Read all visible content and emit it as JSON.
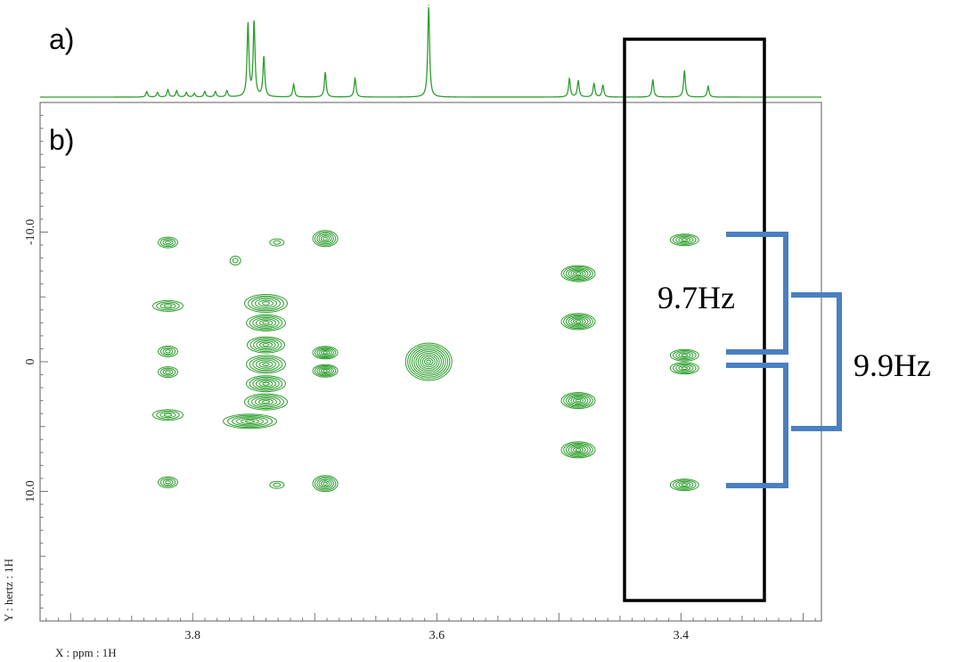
{
  "chart_data": [
    {
      "panel": "a)",
      "type": "line",
      "xlim": [
        3.925,
        3.285
      ],
      "color": "#2e9e2e",
      "peaks": [
        {
          "x": 3.8376,
          "h": 0.06
        },
        {
          "x": 3.8289,
          "h": 0.05
        },
        {
          "x": 3.8203,
          "h": 0.08
        },
        {
          "x": 3.8131,
          "h": 0.07
        },
        {
          "x": 3.8052,
          "h": 0.05
        },
        {
          "x": 3.7987,
          "h": 0.04
        },
        {
          "x": 3.7901,
          "h": 0.06
        },
        {
          "x": 3.7814,
          "h": 0.06
        },
        {
          "x": 3.772,
          "h": 0.07
        },
        {
          "x": 3.7547,
          "h": 0.8
        },
        {
          "x": 3.7497,
          "h": 0.83
        },
        {
          "x": 3.7417,
          "h": 0.44
        },
        {
          "x": 3.7173,
          "h": 0.14
        },
        {
          "x": 3.6914,
          "h": 0.27
        },
        {
          "x": 3.667,
          "h": 0.21
        },
        {
          "x": 3.6067,
          "h": 1.0
        },
        {
          "x": 3.4914,
          "h": 0.2
        },
        {
          "x": 3.4842,
          "h": 0.18
        },
        {
          "x": 3.4713,
          "h": 0.15
        },
        {
          "x": 3.464,
          "h": 0.13
        },
        {
          "x": 3.4231,
          "h": 0.19
        },
        {
          "x": 3.3972,
          "h": 0.29
        },
        {
          "x": 3.3778,
          "h": 0.12
        }
      ]
    },
    {
      "panel": "b)",
      "type": "scatter",
      "xlabel": "X : ppm : 1H",
      "ylabel": "Y : hertz : 1H",
      "xlim": [
        3.925,
        3.285
      ],
      "ylim": [
        20.0,
        -20.0
      ],
      "xticks": [
        3.8,
        3.6,
        3.4
      ],
      "yticks": [
        -10.0,
        0,
        10.0
      ],
      "color": "#2e9e2e",
      "peaks": [
        {
          "x": 3.8203,
          "y": -9.2
        },
        {
          "x": 3.8203,
          "y": -4.3
        },
        {
          "x": 3.8203,
          "y": -0.8
        },
        {
          "x": 3.8203,
          "y": 0.8
        },
        {
          "x": 3.8203,
          "y": 4.1
        },
        {
          "x": 3.8203,
          "y": 9.3
        },
        {
          "x": 3.6914,
          "y": -9.5
        },
        {
          "x": 3.6914,
          "y": -0.7
        },
        {
          "x": 3.6914,
          "y": 0.7
        },
        {
          "x": 3.6914,
          "y": 9.4
        },
        {
          "x": 3.731,
          "y": -9.2
        },
        {
          "x": 3.731,
          "y": 9.5
        },
        {
          "x": 3.765,
          "y": -7.8
        },
        {
          "x": 3.6067,
          "y": 0.0
        },
        {
          "x": 3.4842,
          "y": -6.8
        },
        {
          "x": 3.4842,
          "y": -3.1
        },
        {
          "x": 3.4842,
          "y": 3.0
        },
        {
          "x": 3.4842,
          "y": 6.8
        },
        {
          "x": 3.3972,
          "y": -9.4
        },
        {
          "x": 3.3972,
          "y": -0.5
        },
        {
          "x": 3.3972,
          "y": 0.5
        },
        {
          "x": 3.3972,
          "y": 9.5
        }
      ],
      "multiplet_region": {
        "x": 3.74,
        "y_range": [
          -5.2,
          5.2
        ]
      },
      "annotations": [
        {
          "text": "9.7Hz",
          "y_range": [
            -9.4,
            0.5
          ]
        },
        {
          "text": "9.9Hz",
          "y_range": [
            -5.0,
            5.0
          ]
        }
      ],
      "highlight_box_x_range": [
        3.4505,
        3.3377
      ],
      "bracket_color": "#4a7fc1",
      "box_color": "#000000"
    }
  ]
}
